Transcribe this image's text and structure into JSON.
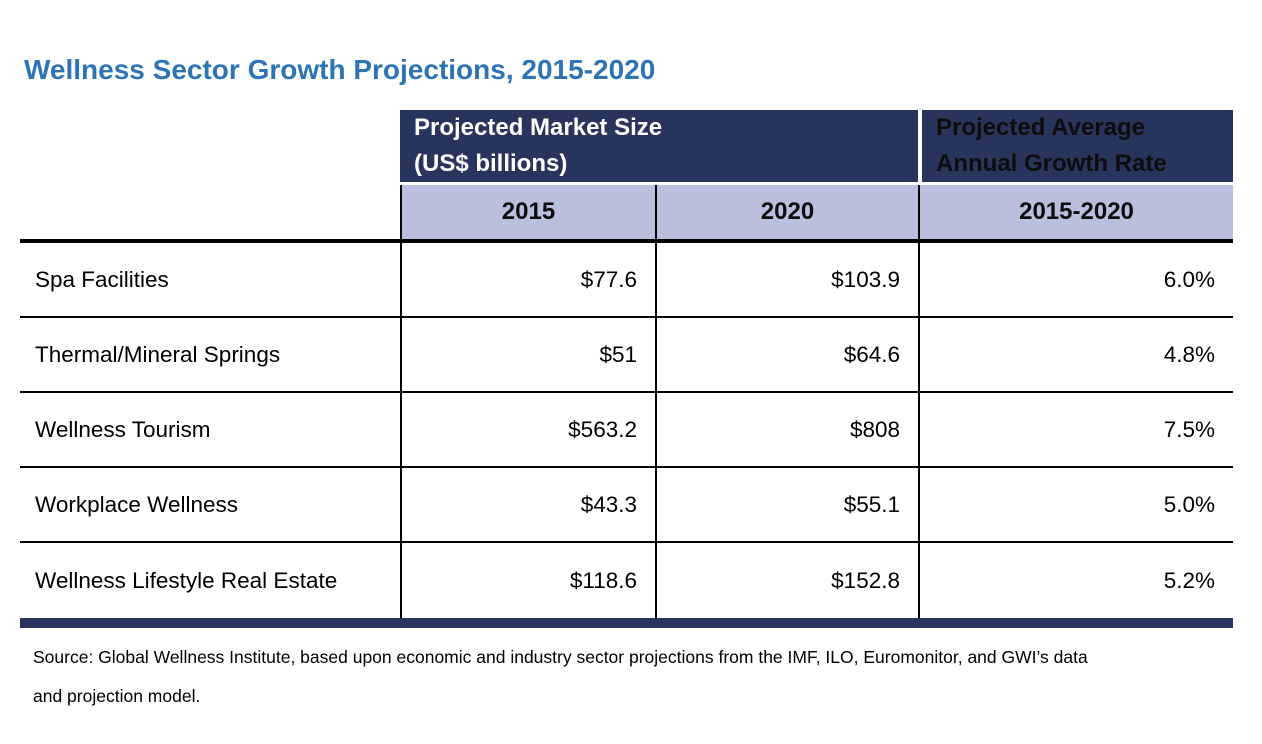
{
  "title": "Wellness Sector Growth Projections, 2015-2020",
  "colors": {
    "title_blue": "#2E74B5",
    "header_navy": "#28345C",
    "subheader_lavender": "#B8C0DE",
    "border_black": "#000000",
    "bottom_bar_navy": "#28345C"
  },
  "table": {
    "group_headers": {
      "market_size": {
        "line1": "Projected Market Size",
        "line2": "(US$ billions)"
      },
      "growth_rate": {
        "line1": "Projected Average",
        "line2": "Annual Growth Rate"
      }
    },
    "sub_headers": {
      "y2015": "2015",
      "y2020": "2020",
      "range": "2015-2020"
    },
    "rows": [
      {
        "label": "Spa Facilities",
        "y2015": "$77.6",
        "y2020": "$103.9",
        "growth": "6.0%"
      },
      {
        "label": "Thermal/Mineral Springs",
        "y2015": "$51",
        "y2020": "$64.6",
        "growth": "4.8%"
      },
      {
        "label": "Wellness Tourism",
        "y2015": "$563.2",
        "y2020": "$808",
        "growth": "7.5%"
      },
      {
        "label": "Workplace Wellness",
        "y2015": "$43.3",
        "y2020": "$55.1",
        "growth": "5.0%"
      },
      {
        "label": "Wellness Lifestyle Real Estate",
        "y2015": "$118.6",
        "y2020": "$152.8",
        "growth": "5.2%"
      }
    ]
  },
  "source": {
    "lines": [
      "Source: Global Wellness Institute, based upon economic and industry sector projections from the IMF, ILO, Euromonitor, and GWI’s data",
      "and projection model."
    ]
  }
}
